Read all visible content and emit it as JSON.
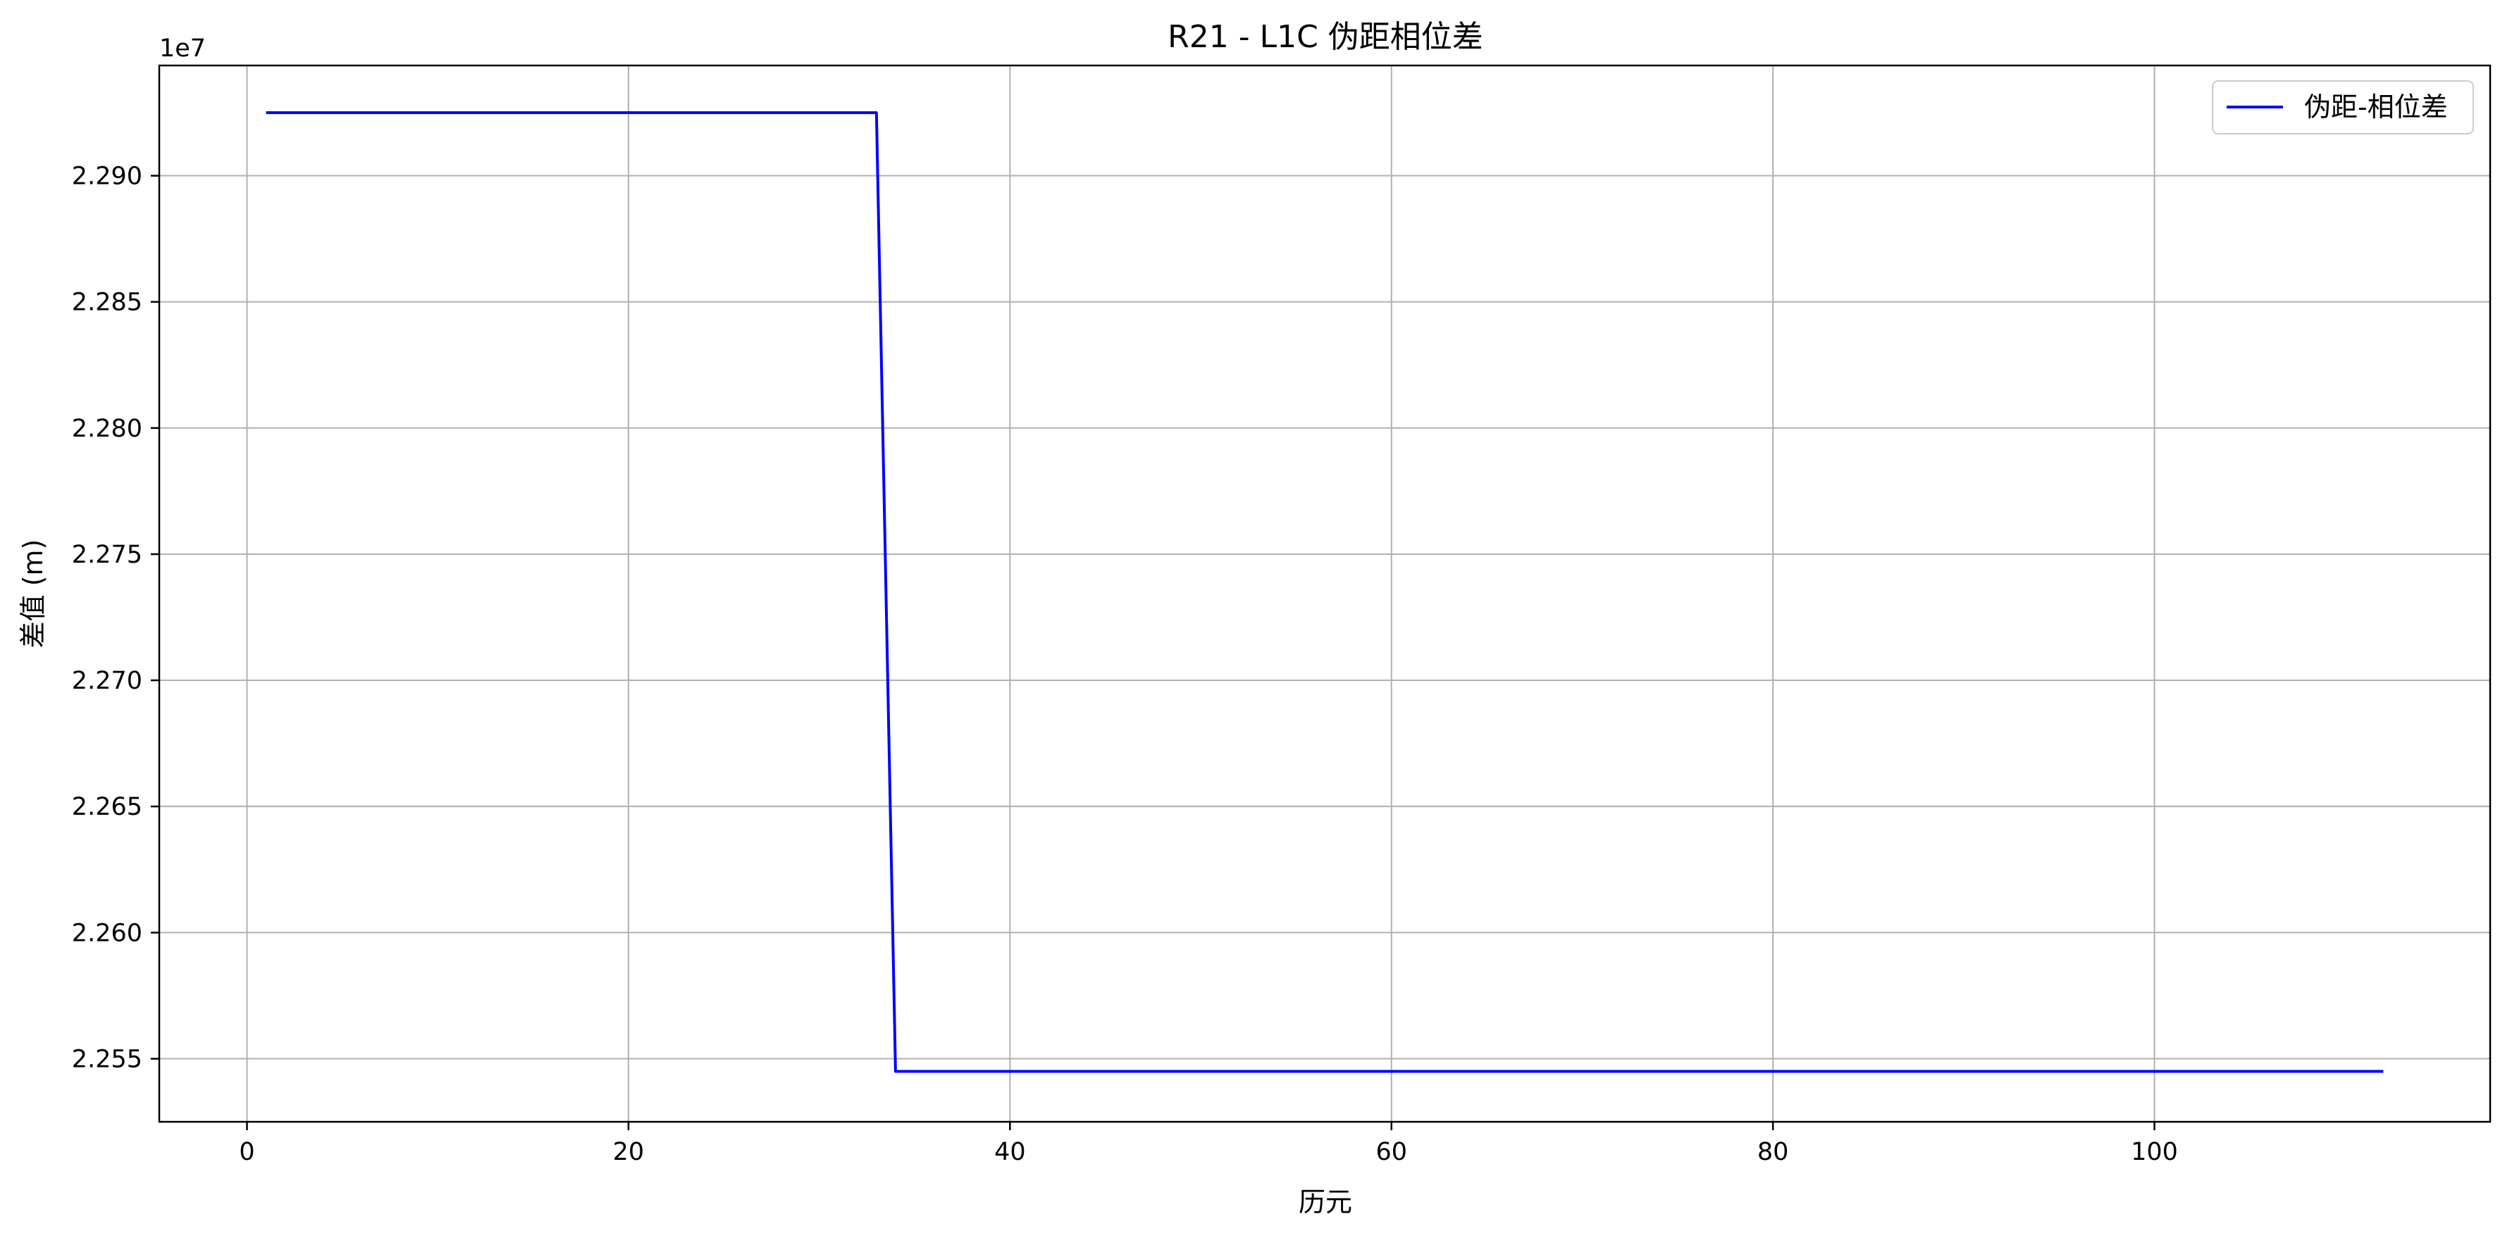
{
  "chart_data": {
    "type": "line",
    "title": "R21 - L1C 伪距相位差",
    "xlabel": "历元",
    "ylabel": "差值 (m)",
    "y_offset_label": "1e7",
    "xlim": [
      -4.6,
      117.6
    ],
    "ylim": [
      22.525,
      22.9437
    ],
    "x_ticks": [
      0,
      20,
      40,
      60,
      80,
      100
    ],
    "x_tick_labels": [
      "0",
      "20",
      "40",
      "60",
      "80",
      "100"
    ],
    "y_ticks": [
      22.55,
      22.6,
      22.65,
      22.7,
      22.75,
      22.8,
      22.85,
      22.9
    ],
    "y_tick_labels": [
      "2.255",
      "2.260",
      "2.265",
      "2.270",
      "2.275",
      "2.280",
      "2.285",
      "2.290"
    ],
    "grid": true,
    "legend_position": "top-right",
    "series": [
      {
        "name": "伪距-相位差",
        "color": "#0000ff",
        "x": [
          1,
          33,
          34,
          112
        ],
        "y": [
          22.925,
          22.925,
          22.545,
          22.545
        ]
      }
    ]
  },
  "colors": {
    "grid": "#b0b0b0",
    "axis": "#000000",
    "background": "#ffffff"
  }
}
